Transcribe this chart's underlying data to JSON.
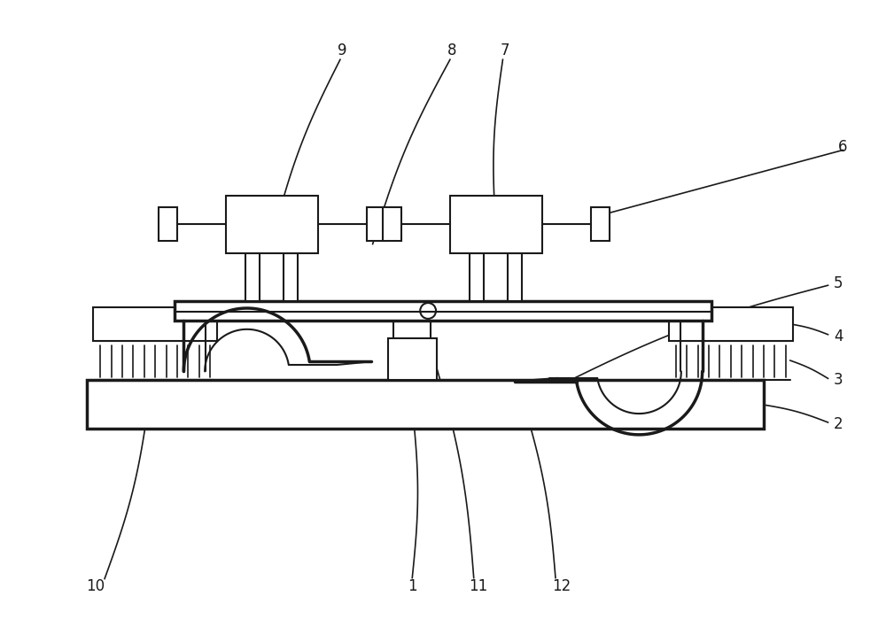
{
  "bg_color": "#ffffff",
  "line_color": "#1a1a1a",
  "label_color": "#2a2a2a",
  "lw": 1.5,
  "tlw": 2.5,
  "fig_width": 10.0,
  "fig_height": 6.99
}
